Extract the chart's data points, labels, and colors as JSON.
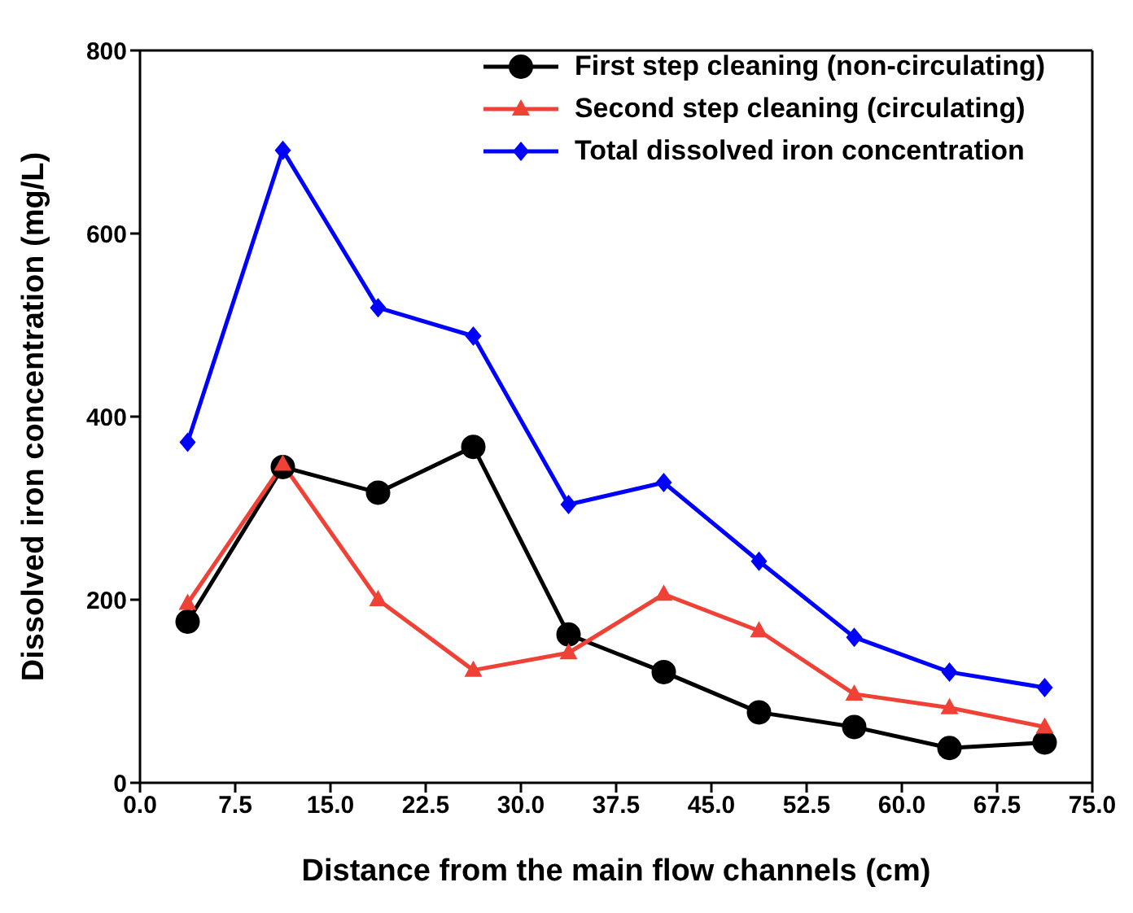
{
  "chart_data": {
    "type": "line",
    "xlabel": "Distance from the main flow channels (cm)",
    "ylabel": "Dissolved iron concentration (mg/L)",
    "x": [
      3.75,
      11.25,
      18.75,
      26.25,
      33.75,
      41.25,
      48.75,
      56.25,
      63.75,
      71.25
    ],
    "series": [
      {
        "name": "First step cleaning (non-circulating)",
        "color": "#000000",
        "marker": "circle",
        "values": [
          176,
          345,
          317,
          367,
          162,
          121,
          77,
          61,
          38,
          44
        ]
      },
      {
        "name": "Second step cleaning (circulating)",
        "color": "#ef4136",
        "marker": "triangle",
        "values": [
          196,
          348,
          200,
          123,
          142,
          206,
          166,
          97,
          82,
          61
        ]
      },
      {
        "name": "Total dissolved iron concentration",
        "color": "#0000ff",
        "marker": "diamond",
        "values": [
          372,
          691,
          519,
          488,
          304,
          328,
          242,
          159,
          121,
          104
        ]
      }
    ],
    "xlim": [
      0,
      75
    ],
    "xticks": [
      {
        "value": 0,
        "label": "0.0"
      },
      7.5,
      {
        "value": 15,
        "label": "15.0"
      },
      22.5,
      {
        "value": 30,
        "label": "30.0"
      },
      37.5,
      {
        "value": 45,
        "label": "45.0"
      },
      52.5,
      {
        "value": 60,
        "label": "60.0"
      },
      67.5,
      {
        "value": 75,
        "label": "75.0"
      }
    ],
    "ylim": [
      0,
      800
    ],
    "yticks": [
      0,
      200,
      400,
      600,
      800
    ],
    "grid": false,
    "legend": "top right",
    "line_style": "solid"
  }
}
